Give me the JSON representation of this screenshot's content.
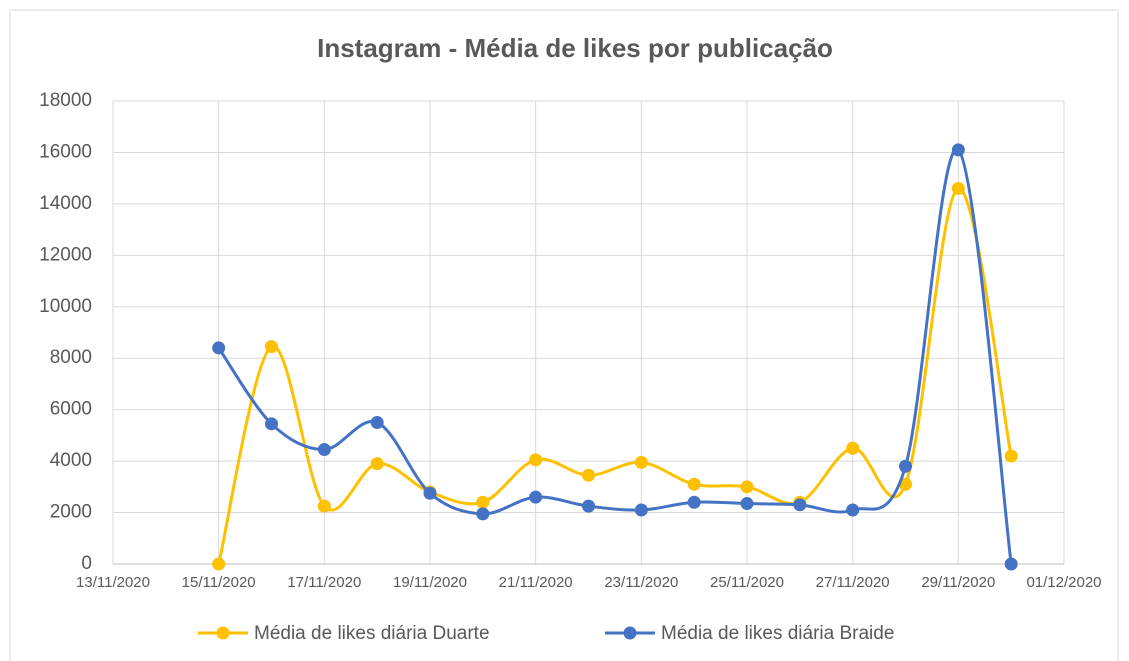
{
  "chart_data": {
    "type": "line",
    "title": "Instagram - Média de likes por publicação",
    "x": [
      "15/11/2020",
      "16/11/2020",
      "17/11/2020",
      "18/11/2020",
      "19/11/2020",
      "20/11/2020",
      "21/11/2020",
      "22/11/2020",
      "23/11/2020",
      "24/11/2020",
      "25/11/2020",
      "26/11/2020",
      "27/11/2020",
      "28/11/2020",
      "29/11/2020",
      "30/11/2020"
    ],
    "series": [
      {
        "name": "Média de likes diária Duarte",
        "color": "#FFC000",
        "values": [
          0,
          8450,
          2250,
          3900,
          2800,
          2400,
          4050,
          3450,
          3950,
          3100,
          3000,
          2400,
          4500,
          3100,
          14600,
          4200
        ]
      },
      {
        "name": "Média de likes diária Braide",
        "color": "#4472C4",
        "values": [
          8400,
          5450,
          4450,
          5500,
          2750,
          1950,
          2600,
          2250,
          2100,
          2400,
          2350,
          2300,
          2100,
          3800,
          16100,
          0
        ]
      }
    ],
    "xlim": [
      "13/11/2020",
      "01/12/2020"
    ],
    "xticks": [
      "13/11/2020",
      "15/11/2020",
      "17/11/2020",
      "19/11/2020",
      "21/11/2020",
      "23/11/2020",
      "25/11/2020",
      "27/11/2020",
      "29/11/2020",
      "01/12/2020"
    ],
    "ylim": [
      0,
      18000
    ],
    "yticks": [
      0,
      2000,
      4000,
      6000,
      8000,
      10000,
      12000,
      14000,
      16000,
      18000
    ],
    "grid": true,
    "legend": "bottom"
  }
}
